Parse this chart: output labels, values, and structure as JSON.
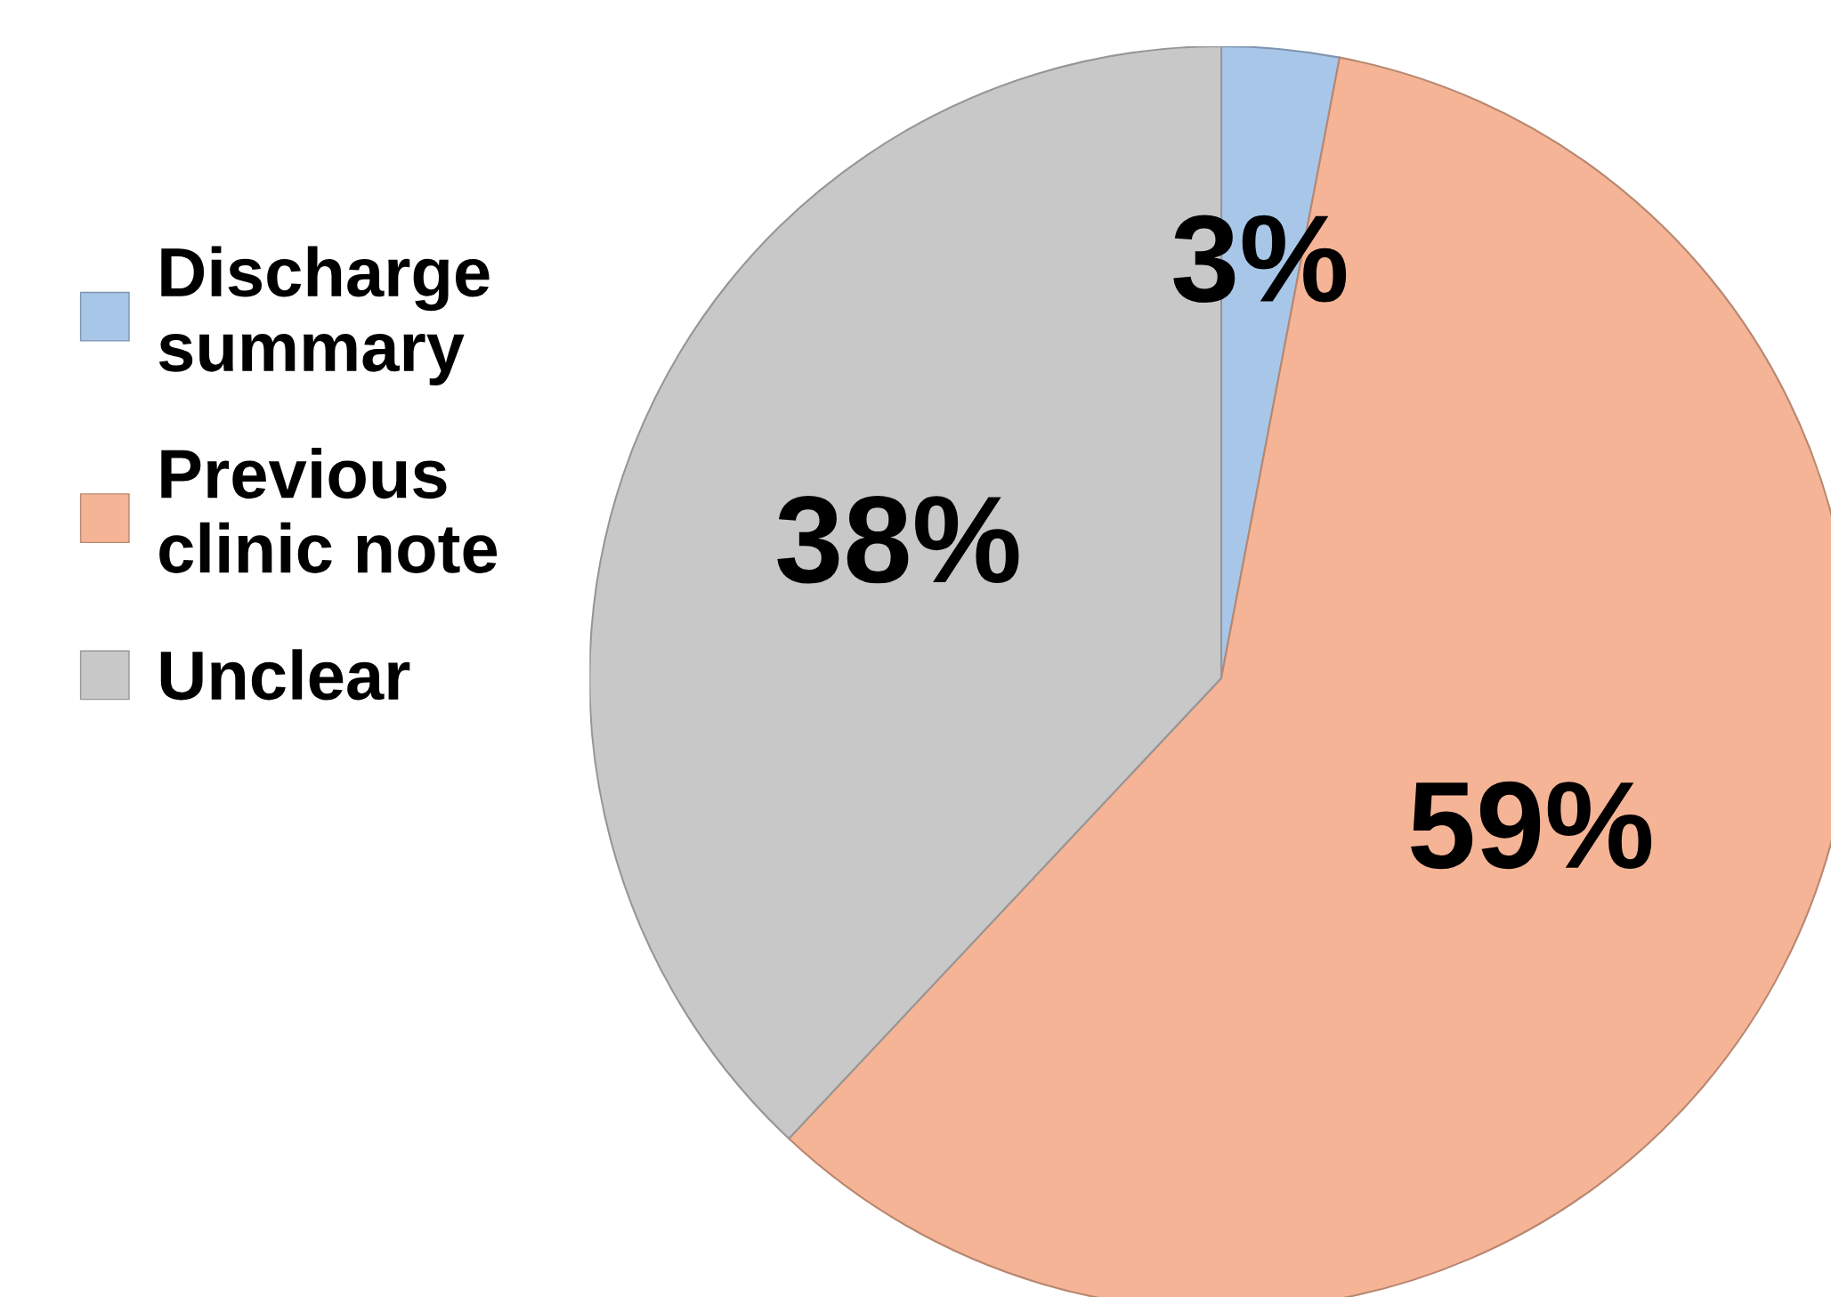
{
  "chart_data": {
    "type": "pie",
    "categories": [
      "Discharge summary",
      "Previous clinic note",
      "Unclear"
    ],
    "values": [
      3,
      59,
      38
    ],
    "colors": [
      "#a8c6e8",
      "#f5b496",
      "#c8c8c8"
    ],
    "value_labels": [
      "3%",
      "59%",
      "38%"
    ],
    "legend": "left"
  }
}
